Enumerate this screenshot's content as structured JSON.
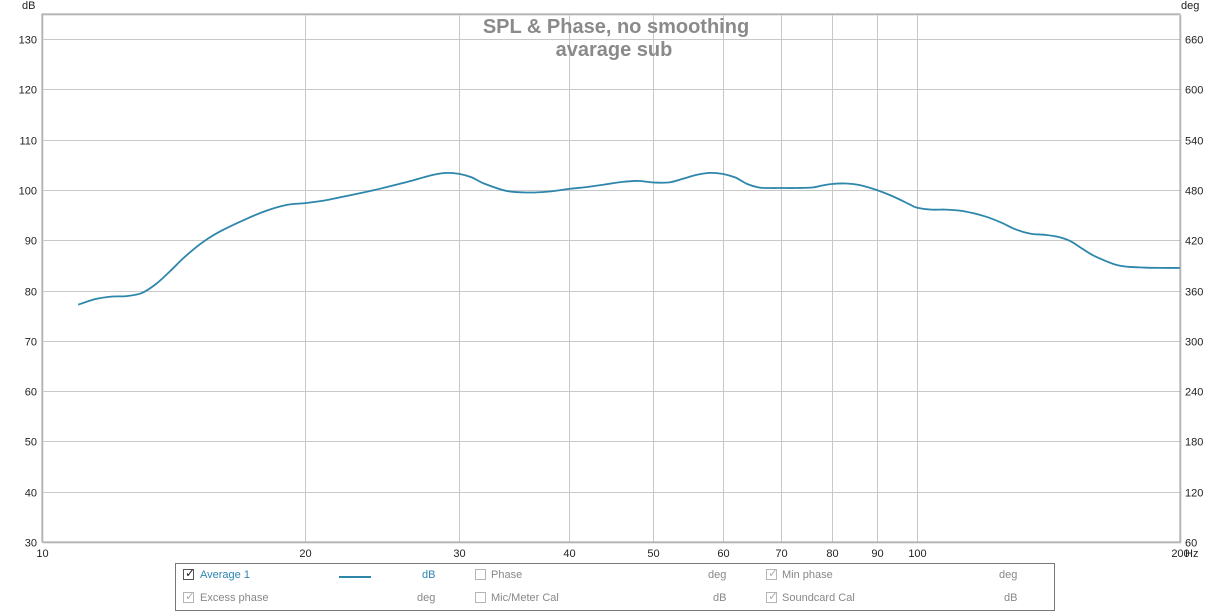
{
  "chart_data": {
    "type": "line",
    "title": "SPL & Phase, no smoothing",
    "subtitle": "avarage sub",
    "x_scale": "log",
    "xlim": [
      10,
      200
    ],
    "x_ticks": [
      10,
      20,
      30,
      40,
      50,
      60,
      70,
      80,
      90,
      100,
      200
    ],
    "x_unit": "Hz",
    "ylim": [
      30,
      135
    ],
    "y_ticks": [
      30,
      40,
      50,
      60,
      70,
      80,
      90,
      100,
      110,
      120,
      130
    ],
    "y_tick_labels": [
      "30",
      "40",
      "50",
      "60",
      "70",
      "80",
      "90",
      "100",
      "110",
      "120",
      "130"
    ],
    "ylabel": "dB",
    "y2_ticks": [
      60,
      120,
      180,
      240,
      300,
      360,
      420,
      480,
      540,
      600,
      660
    ],
    "y2label": "deg",
    "grid": true,
    "series": [
      {
        "name": "Average 1",
        "color": "#2e86ab",
        "x": [
          11,
          11.5,
          12,
          12.5,
          13,
          13.5,
          14,
          14.5,
          15,
          15.5,
          16,
          17,
          18,
          19,
          20,
          21,
          22,
          24,
          26,
          28,
          29,
          30,
          31,
          32,
          34,
          36,
          38,
          40,
          42,
          44,
          46,
          48,
          50,
          52,
          54,
          56,
          58,
          60,
          62,
          64,
          66,
          68,
          70,
          73,
          76,
          78,
          80,
          83,
          86,
          90,
          94,
          98,
          100,
          104,
          108,
          112,
          116,
          120,
          125,
          130,
          135,
          140,
          145,
          150,
          155,
          160,
          170,
          180,
          190,
          200
        ],
        "values": [
          77.2,
          78.3,
          78.8,
          78.9,
          79.5,
          81.3,
          83.8,
          86.4,
          88.6,
          90.4,
          91.8,
          94.0,
          95.8,
          97.0,
          97.4,
          97.9,
          98.6,
          100.0,
          101.5,
          103.0,
          103.4,
          103.2,
          102.5,
          101.3,
          99.8,
          99.5,
          99.7,
          100.2,
          100.6,
          101.1,
          101.6,
          101.8,
          101.5,
          101.5,
          102.2,
          103.0,
          103.4,
          103.2,
          102.5,
          101.2,
          100.5,
          100.4,
          100.4,
          100.4,
          100.5,
          100.9,
          101.2,
          101.3,
          101.0,
          100.0,
          98.7,
          97.2,
          96.5,
          96.1,
          96.1,
          95.9,
          95.4,
          94.7,
          93.5,
          92.1,
          91.3,
          91.1,
          90.7,
          89.8,
          88.2,
          86.8,
          85.0,
          84.6,
          84.5,
          84.5
        ]
      }
    ]
  },
  "legend": {
    "row1": [
      {
        "label": "Average 1",
        "unit": "dB",
        "checked": true,
        "active": true,
        "swatch": true
      },
      {
        "label": "Phase",
        "unit": "deg",
        "checked": false,
        "active": false
      },
      {
        "label": "Min phase",
        "unit": "deg",
        "checked": true,
        "active": false
      }
    ],
    "row2": [
      {
        "label": "Excess phase",
        "unit": "deg",
        "checked": true,
        "active": false
      },
      {
        "label": "Mic/Meter Cal",
        "unit": "dB",
        "checked": false,
        "active": false
      },
      {
        "label": "Soundcard Cal",
        "unit": "dB",
        "checked": true,
        "active": false
      }
    ],
    "check_mark": "✓"
  }
}
